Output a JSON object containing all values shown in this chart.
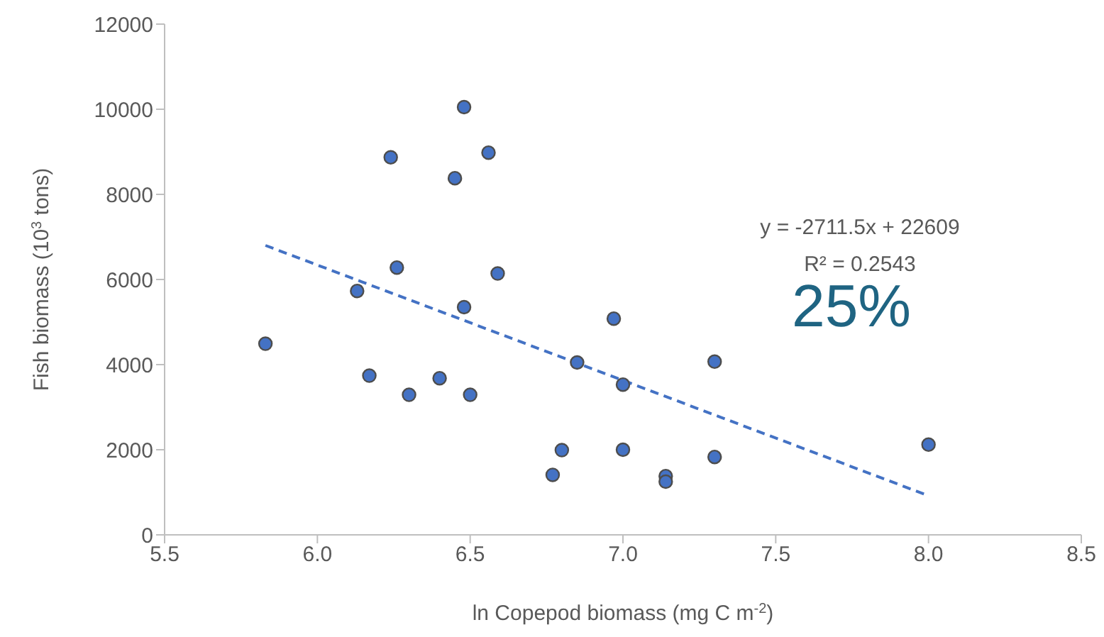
{
  "chart_data": {
    "type": "scatter",
    "xlabel": "ln Copepod biomass (mg C m$^{-2}$)",
    "ylabel": "Fish biomass (10$^{3}$ tons)",
    "xlim": [
      5.5,
      8.5
    ],
    "xticks": [
      5.5,
      {
        "value": 6,
        "label": "6.0"
      },
      6.5,
      {
        "value": 7,
        "label": "7.0"
      },
      7.5,
      {
        "value": 8,
        "label": "8.0"
      },
      8.5
    ],
    "ylim": [
      0,
      12000
    ],
    "yticks": [
      0,
      2000,
      4000,
      6000,
      8000,
      10000,
      12000
    ],
    "marker": "circle",
    "series": [
      {
        "color": "#4472c4",
        "x": [
          6.48,
          6.24,
          6.56,
          6.45,
          6.26,
          6.59,
          6.13,
          6.48,
          5.83,
          6.17,
          6.3,
          6.4,
          6.5,
          6.97,
          6.85,
          7.3,
          7.0,
          6.8,
          7.0,
          6.77,
          7.14,
          7.14,
          7.3,
          8.0
        ],
        "values": [
          10050,
          8870,
          8980,
          8380,
          6280,
          6140,
          5730,
          5350,
          4490,
          3740,
          3290,
          3680,
          3290,
          5080,
          4050,
          4070,
          3530,
          1990,
          2000,
          1410,
          1380,
          1250,
          1830,
          2120
        ]
      },
      {
        "type": "line",
        "color": "#4472c4",
        "marker": "none",
        "line_style": "dashed",
        "x": [
          5.83,
          8.0
        ],
        "values": [
          6800,
          920
        ]
      }
    ],
    "annotations": [
      "y = -2711.5x + 22609",
      "R² = 0.2543",
      "25%"
    ]
  }
}
